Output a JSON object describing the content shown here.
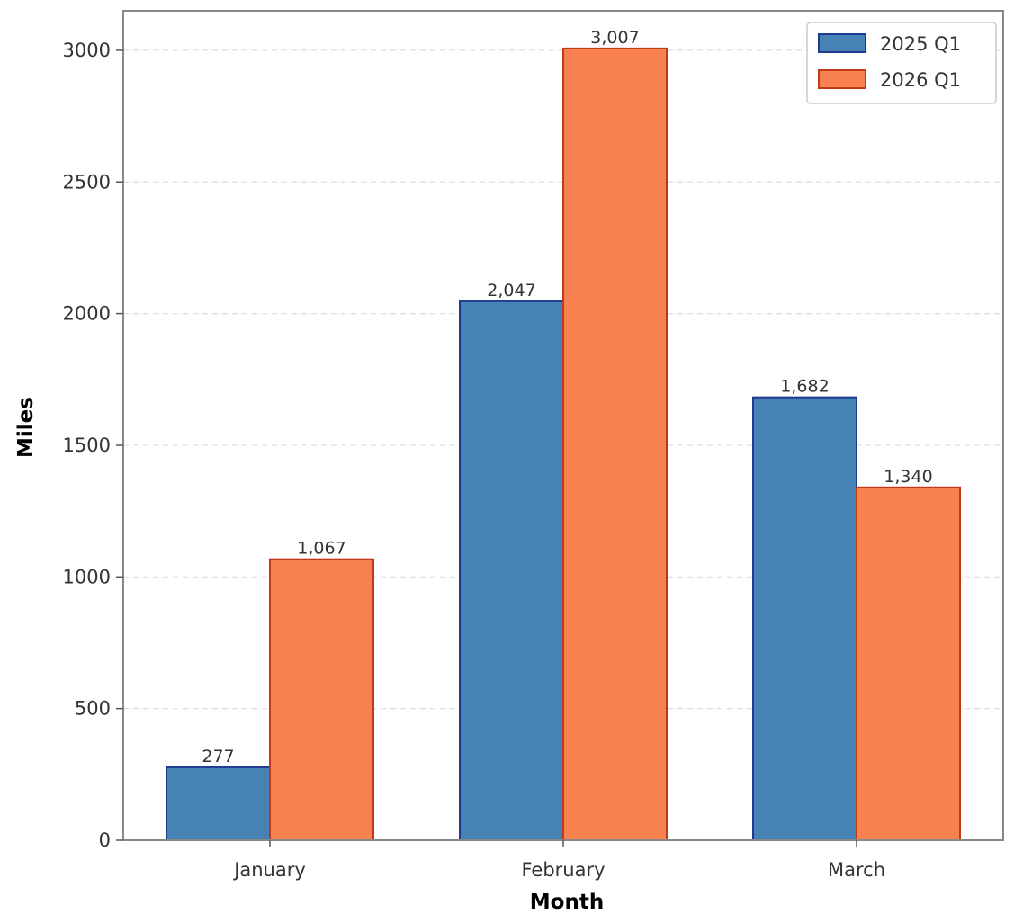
{
  "chart_data": {
    "type": "bar",
    "title": "",
    "xlabel": "Month",
    "ylabel": "Miles",
    "categories": [
      "January",
      "February",
      "March"
    ],
    "series": [
      {
        "name": "2025 Q1",
        "values": [
          277,
          2047,
          1682
        ],
        "labels": [
          "277",
          "2,047",
          "1,682"
        ],
        "color": "#4682b4",
        "edge": "#1f3a93"
      },
      {
        "name": "2026 Q1",
        "values": [
          1067,
          3007,
          1340
        ],
        "labels": [
          "1,067",
          "3,007",
          "1,340"
        ],
        "color": "#f7814f",
        "edge": "#c0391b"
      }
    ],
    "ylim": [
      0,
      3150
    ],
    "yticks": [
      0,
      500,
      1000,
      1500,
      2000,
      2500,
      3000
    ],
    "ytick_labels": [
      "0",
      "500",
      "1000",
      "1500",
      "2000",
      "2500",
      "3000"
    ],
    "grid": true,
    "legend_position": "top-right"
  }
}
